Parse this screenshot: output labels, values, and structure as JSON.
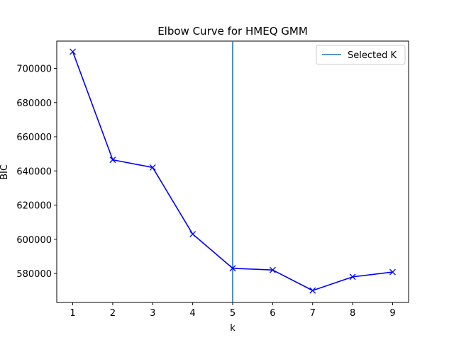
{
  "chart_data": {
    "type": "line",
    "title": "Elbow Curve for HMEQ GMM",
    "xlabel": "k",
    "ylabel": "BIC",
    "x": [
      1,
      2,
      3,
      4,
      5,
      6,
      7,
      8,
      9
    ],
    "xticks": [
      "1",
      "2",
      "3",
      "4",
      "5",
      "6",
      "7",
      "8",
      "9"
    ],
    "yticks": [
      580000,
      600000,
      620000,
      640000,
      660000,
      680000,
      700000
    ],
    "xlim": [
      0.6,
      9.4
    ],
    "ylim": [
      563000,
      716000
    ],
    "grid": false,
    "series": [
      {
        "values": [
          709800,
          646500,
          642000,
          603000,
          583000,
          582000,
          570000,
          578000,
          580800
        ],
        "color": "#0000ff",
        "marker": "x"
      }
    ],
    "vline": {
      "name": "Selected K",
      "x": 5,
      "color": "#1f77b4"
    },
    "legend": {
      "position": "top-right",
      "entries": [
        "Selected K"
      ]
    }
  }
}
